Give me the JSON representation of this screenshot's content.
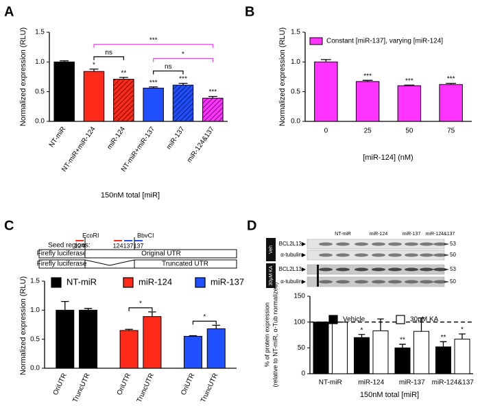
{
  "chart_data": [
    {
      "panel": "A",
      "type": "bar",
      "ylabel": "Normalized expression (RLU)",
      "xlabel": "150nM total [miR]",
      "categories": [
        "NT-miR",
        "NT-miR+miR-124",
        "miR-124",
        "NT-miR+miR-137",
        "miR-137",
        "miR-124&137"
      ],
      "values": [
        1.0,
        0.84,
        0.71,
        0.56,
        0.61,
        0.39
      ],
      "errors": [
        0.02,
        0.04,
        0.03,
        0.02,
        0.03,
        0.03
      ],
      "colors": [
        "#000000",
        "#ff2a1a",
        "#ff2a1a",
        "#1f4fff",
        "#1f4fff",
        "#ff33ff"
      ],
      "hatch": [
        false,
        false,
        true,
        false,
        true,
        true
      ],
      "significance": [
        null,
        "*",
        "**",
        "***",
        "***",
        "***"
      ],
      "brackets": [
        {
          "between": [
            "NT-miR+miR-124",
            "miR-124"
          ],
          "label": "ns",
          "color": "#000000"
        },
        {
          "between": [
            "NT-miR+miR-137",
            "miR-137"
          ],
          "label": "ns",
          "color": "#000000"
        },
        {
          "between": [
            "NT-miR+miR-137",
            "miR-124&137"
          ],
          "label": "*",
          "color": "#ff33ff"
        },
        {
          "between": [
            "NT-miR+miR-124",
            "miR-124&137"
          ],
          "label": "***",
          "color": "#ff33ff"
        }
      ],
      "ylim": [
        0,
        1.5
      ],
      "yticks": [
        {
          "value": 0,
          "label": "0.0"
        },
        {
          "value": 0.5,
          "label": "0.5"
        },
        {
          "value": 1,
          "label": "1.0"
        },
        {
          "value": 1.5,
          "label": "1.5"
        }
      ]
    },
    {
      "panel": "B",
      "type": "bar",
      "ylabel": "Normalized expression (RLU)",
      "xlabel": "[miR-124] (nM)",
      "legend": "Constant [miR-137], varying [miR-124]",
      "color": "#ff33ff",
      "categories": [
        "0",
        "25",
        "50",
        "75"
      ],
      "values": [
        1.0,
        0.67,
        0.6,
        0.62
      ],
      "errors": [
        0.04,
        0.02,
        0.01,
        0.02
      ],
      "significance": [
        null,
        "***",
        "***",
        "***"
      ],
      "ylim": [
        0,
        1.5
      ],
      "yticks": [
        {
          "value": 0,
          "label": "0.0"
        },
        {
          "value": 0.5,
          "label": "0.5"
        },
        {
          "value": 1,
          "label": "1.0"
        },
        {
          "value": 1.5,
          "label": "1.5"
        }
      ]
    },
    {
      "panel": "C",
      "type": "bar",
      "ylabel": "Normalized expression (RLU)",
      "categories": [
        "OriUTR",
        "TruncUTR"
      ],
      "series": [
        {
          "name": "NT-miR",
          "color": "#000000",
          "values": [
            1.0,
            1.0
          ],
          "errors": [
            0.15,
            0.03
          ],
          "bracket": null
        },
        {
          "name": "miR-124",
          "color": "#ff2a1a",
          "values": [
            0.65,
            0.89
          ],
          "errors": [
            0.02,
            0.08
          ],
          "bracket": "*"
        },
        {
          "name": "miR-137",
          "color": "#1f4fff",
          "values": [
            0.55,
            0.68
          ],
          "errors": [
            0.01,
            0.06
          ],
          "bracket": "*"
        }
      ],
      "ylim": [
        0,
        1.5
      ],
      "yticks": [
        {
          "value": 0,
          "label": "0.0"
        },
        {
          "value": 0.5,
          "label": "0.5"
        },
        {
          "value": 1,
          "label": "1.0"
        },
        {
          "value": 1.5,
          "label": "1.5"
        }
      ]
    },
    {
      "panel": "D",
      "type": "bar",
      "ylabel": [
        "% of protein expression",
        "(relative to NT-miR, α-Tub normalized)"
      ],
      "xlabel": "150nM total [miR]",
      "categories": [
        "NT-miR",
        "miR-124",
        "miR-137",
        "miR-124&137"
      ],
      "series": [
        {
          "name": "Vehicle",
          "color": "#000000",
          "values": [
            100,
            70,
            50,
            52
          ],
          "errors": [
            0,
            6,
            7,
            10
          ],
          "significance": [
            null,
            "*",
            "**",
            "**"
          ]
        },
        {
          "name": "30μM KA",
          "color": "#ffffff",
          "values": [
            100,
            83,
            82,
            67
          ],
          "errors": [
            0,
            23,
            26,
            10
          ],
          "significance": [
            null,
            null,
            null,
            "*"
          ]
        }
      ],
      "reference_line": 100,
      "ylim": [
        0,
        150
      ],
      "yticks": [
        0,
        50,
        100,
        150
      ]
    }
  ],
  "diagram": {
    "seed_label": "Seed regions:",
    "sites": [
      "EcoRI",
      "BbvCI"
    ],
    "seeds": [
      {
        "label": "124",
        "color": "#ff2a1a"
      },
      {
        "label": "124",
        "color": "#ff2a1a"
      },
      {
        "label": "137",
        "color": "#1f4fff"
      },
      {
        "label": "137",
        "color": "#1f4fff"
      }
    ],
    "constructs": [
      {
        "gene": "Firefly luciferase",
        "utr": "Original UTR"
      },
      {
        "gene": "Firefly luciferase",
        "utr": "Truncated UTR"
      }
    ]
  },
  "blot": {
    "lanes": [
      "NT-miR",
      "miR-124",
      "miR-137",
      "miR-124&137"
    ],
    "conditions": [
      {
        "label": "Veh",
        "bands": [
          {
            "protein": "BCL2L13",
            "mw": 53
          },
          {
            "protein": "α-tubulin",
            "mw": 50
          }
        ]
      },
      {
        "label": "30μM KA",
        "bands": [
          {
            "protein": "BCL2L13",
            "mw": 53
          },
          {
            "protein": "α-tubulin",
            "mw": 50
          }
        ]
      }
    ]
  }
}
